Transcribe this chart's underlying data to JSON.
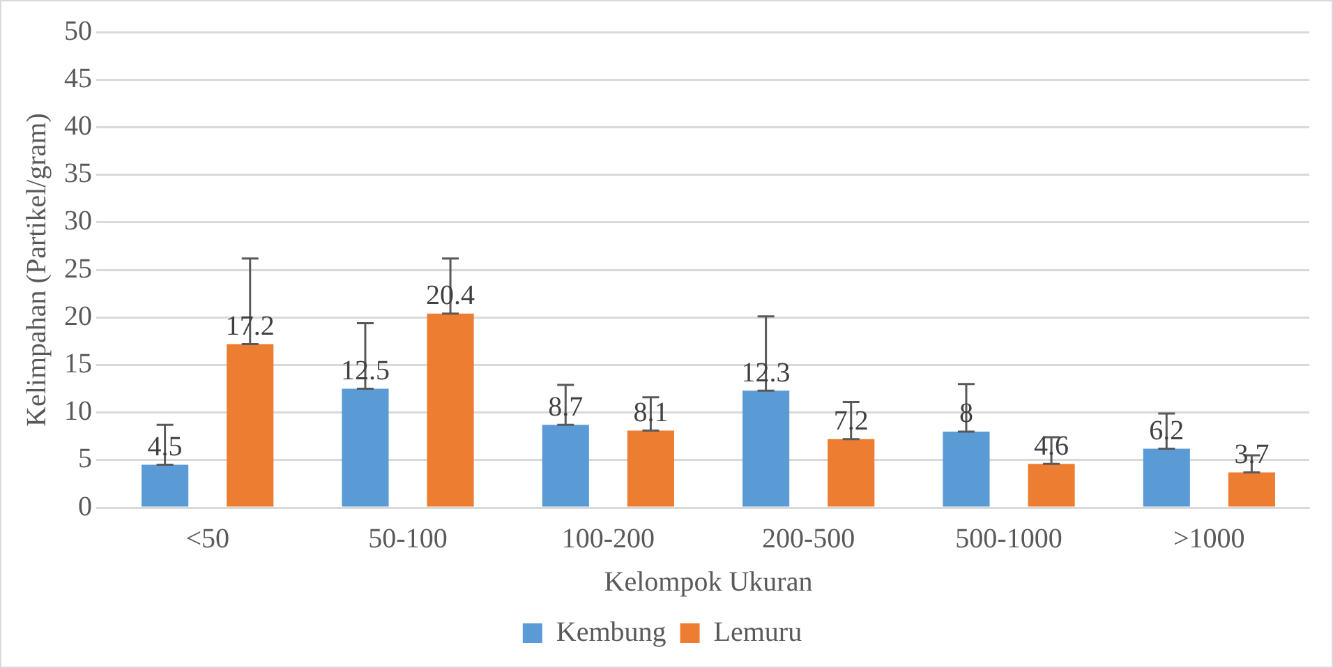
{
  "chart_data": {
    "type": "bar",
    "xlabel": "Kelompok Ukuran",
    "ylabel": "Kelimpahan (Partikel/gram)",
    "categories": [
      "<50",
      "50-100",
      "100-200",
      "200-500",
      "500-1000",
      ">1000"
    ],
    "series": [
      {
        "name": "Kembung",
        "color": "#5b9bd5",
        "values": [
          4.5,
          12.5,
          8.7,
          12.3,
          8,
          6.2
        ],
        "errors": [
          [
            4.5,
            8.7
          ],
          [
            12.5,
            19.4
          ],
          [
            8.7,
            12.9
          ],
          [
            12.3,
            20.1
          ],
          [
            8,
            13.0
          ],
          [
            6.2,
            9.9
          ]
        ]
      },
      {
        "name": "Lemuru",
        "color": "#ed7d31",
        "values": [
          17.2,
          20.4,
          8.1,
          7.2,
          4.6,
          3.7
        ],
        "errors": [
          [
            17.2,
            26.2
          ],
          [
            20.4,
            26.2
          ],
          [
            8.1,
            11.6
          ],
          [
            7.2,
            11.1
          ],
          [
            4.6,
            7.4
          ],
          [
            3.7,
            5.5
          ]
        ]
      }
    ],
    "ylim": [
      0,
      50
    ],
    "yticks": [
      0,
      5,
      10,
      15,
      20,
      25,
      30,
      35,
      40,
      45,
      50
    ],
    "grid": "y",
    "legend": "bottom",
    "data_labels": true
  }
}
